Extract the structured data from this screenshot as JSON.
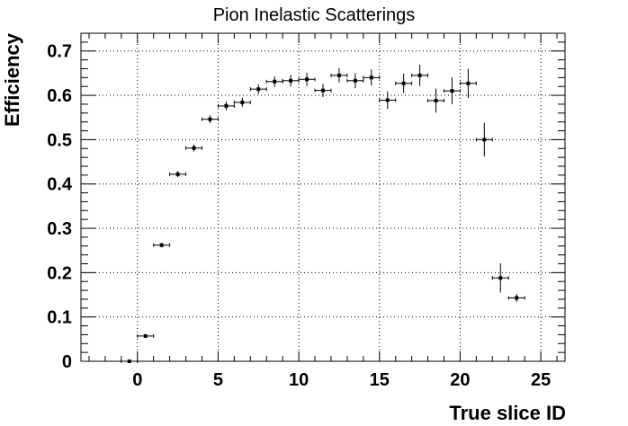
{
  "chart_data": {
    "type": "scatter",
    "title": "Pion Inelastic Scatterings",
    "xlabel": "True slice ID",
    "ylabel": "Efficiency",
    "xlim": [
      -3.5,
      26.5
    ],
    "ylim": [
      0,
      0.74
    ],
    "grid": true,
    "x_ticks": [
      0,
      5,
      10,
      15,
      20,
      25
    ],
    "x_tick_labels": [
      "0",
      "5",
      "10",
      "15",
      "20",
      "25"
    ],
    "y_ticks": [
      0,
      0.1,
      0.2,
      0.3,
      0.4,
      0.5,
      0.6,
      0.7
    ],
    "y_tick_labels": [
      "0",
      "0.1",
      "0.2",
      "0.3",
      "0.4",
      "0.5",
      "0.6",
      "0.7"
    ],
    "x_bin_half_width": 0.5,
    "points": [
      {
        "x": -0.5,
        "y": 0.0,
        "err": 0.0
      },
      {
        "x": 0.5,
        "y": 0.057,
        "err": 0.003
      },
      {
        "x": 1.5,
        "y": 0.262,
        "err": 0.005
      },
      {
        "x": 2.5,
        "y": 0.422,
        "err": 0.007
      },
      {
        "x": 3.5,
        "y": 0.481,
        "err": 0.008
      },
      {
        "x": 4.5,
        "y": 0.546,
        "err": 0.009
      },
      {
        "x": 5.5,
        "y": 0.576,
        "err": 0.01
      },
      {
        "x": 6.5,
        "y": 0.584,
        "err": 0.01
      },
      {
        "x": 7.5,
        "y": 0.614,
        "err": 0.011
      },
      {
        "x": 8.5,
        "y": 0.631,
        "err": 0.012
      },
      {
        "x": 9.5,
        "y": 0.633,
        "err": 0.013
      },
      {
        "x": 10.5,
        "y": 0.636,
        "err": 0.015
      },
      {
        "x": 11.5,
        "y": 0.611,
        "err": 0.015
      },
      {
        "x": 12.5,
        "y": 0.645,
        "err": 0.016
      },
      {
        "x": 13.5,
        "y": 0.633,
        "err": 0.017
      },
      {
        "x": 14.5,
        "y": 0.64,
        "err": 0.018
      },
      {
        "x": 15.5,
        "y": 0.589,
        "err": 0.02
      },
      {
        "x": 16.5,
        "y": 0.627,
        "err": 0.022
      },
      {
        "x": 17.5,
        "y": 0.645,
        "err": 0.024
      },
      {
        "x": 18.5,
        "y": 0.588,
        "err": 0.027
      },
      {
        "x": 19.5,
        "y": 0.61,
        "err": 0.03
      },
      {
        "x": 20.5,
        "y": 0.627,
        "err": 0.033
      },
      {
        "x": 21.5,
        "y": 0.5,
        "err": 0.038
      },
      {
        "x": 22.5,
        "y": 0.188,
        "err": 0.033
      },
      {
        "x": 23.5,
        "y": 0.143,
        "err": 0.009
      }
    ]
  }
}
